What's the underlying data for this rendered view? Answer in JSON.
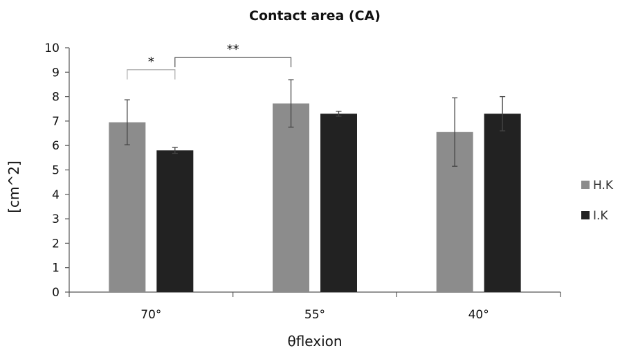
{
  "chart_data": {
    "type": "bar",
    "title": "Contact area (CA)",
    "xlabel": "θflexion",
    "ylabel": "[cm^2]",
    "categories": [
      "70°",
      "55°",
      "40°"
    ],
    "ylim": [
      0,
      10
    ],
    "yticks": [
      0,
      1,
      2,
      3,
      4,
      5,
      6,
      7,
      8,
      9,
      10
    ],
    "grid": false,
    "legend_position": "right",
    "series": [
      {
        "name": "H.K",
        "color": "#8c8c8c",
        "values": [
          6.95,
          7.72,
          6.55
        ],
        "errors": [
          0.92,
          0.97,
          1.4
        ]
      },
      {
        "name": "I.K",
        "color": "#222222",
        "values": [
          5.8,
          7.3,
          7.3
        ],
        "errors": [
          0.12,
          0.1,
          0.7
        ]
      }
    ],
    "annotations": [
      {
        "label": "*",
        "from": {
          "category": 0,
          "series": 0
        },
        "to": {
          "category": 0,
          "series": 1
        },
        "y": 9.1
      },
      {
        "label": "**",
        "from": {
          "category": 0,
          "series": 1
        },
        "to": {
          "category": 1,
          "series": 0
        },
        "y": 9.6
      }
    ]
  }
}
